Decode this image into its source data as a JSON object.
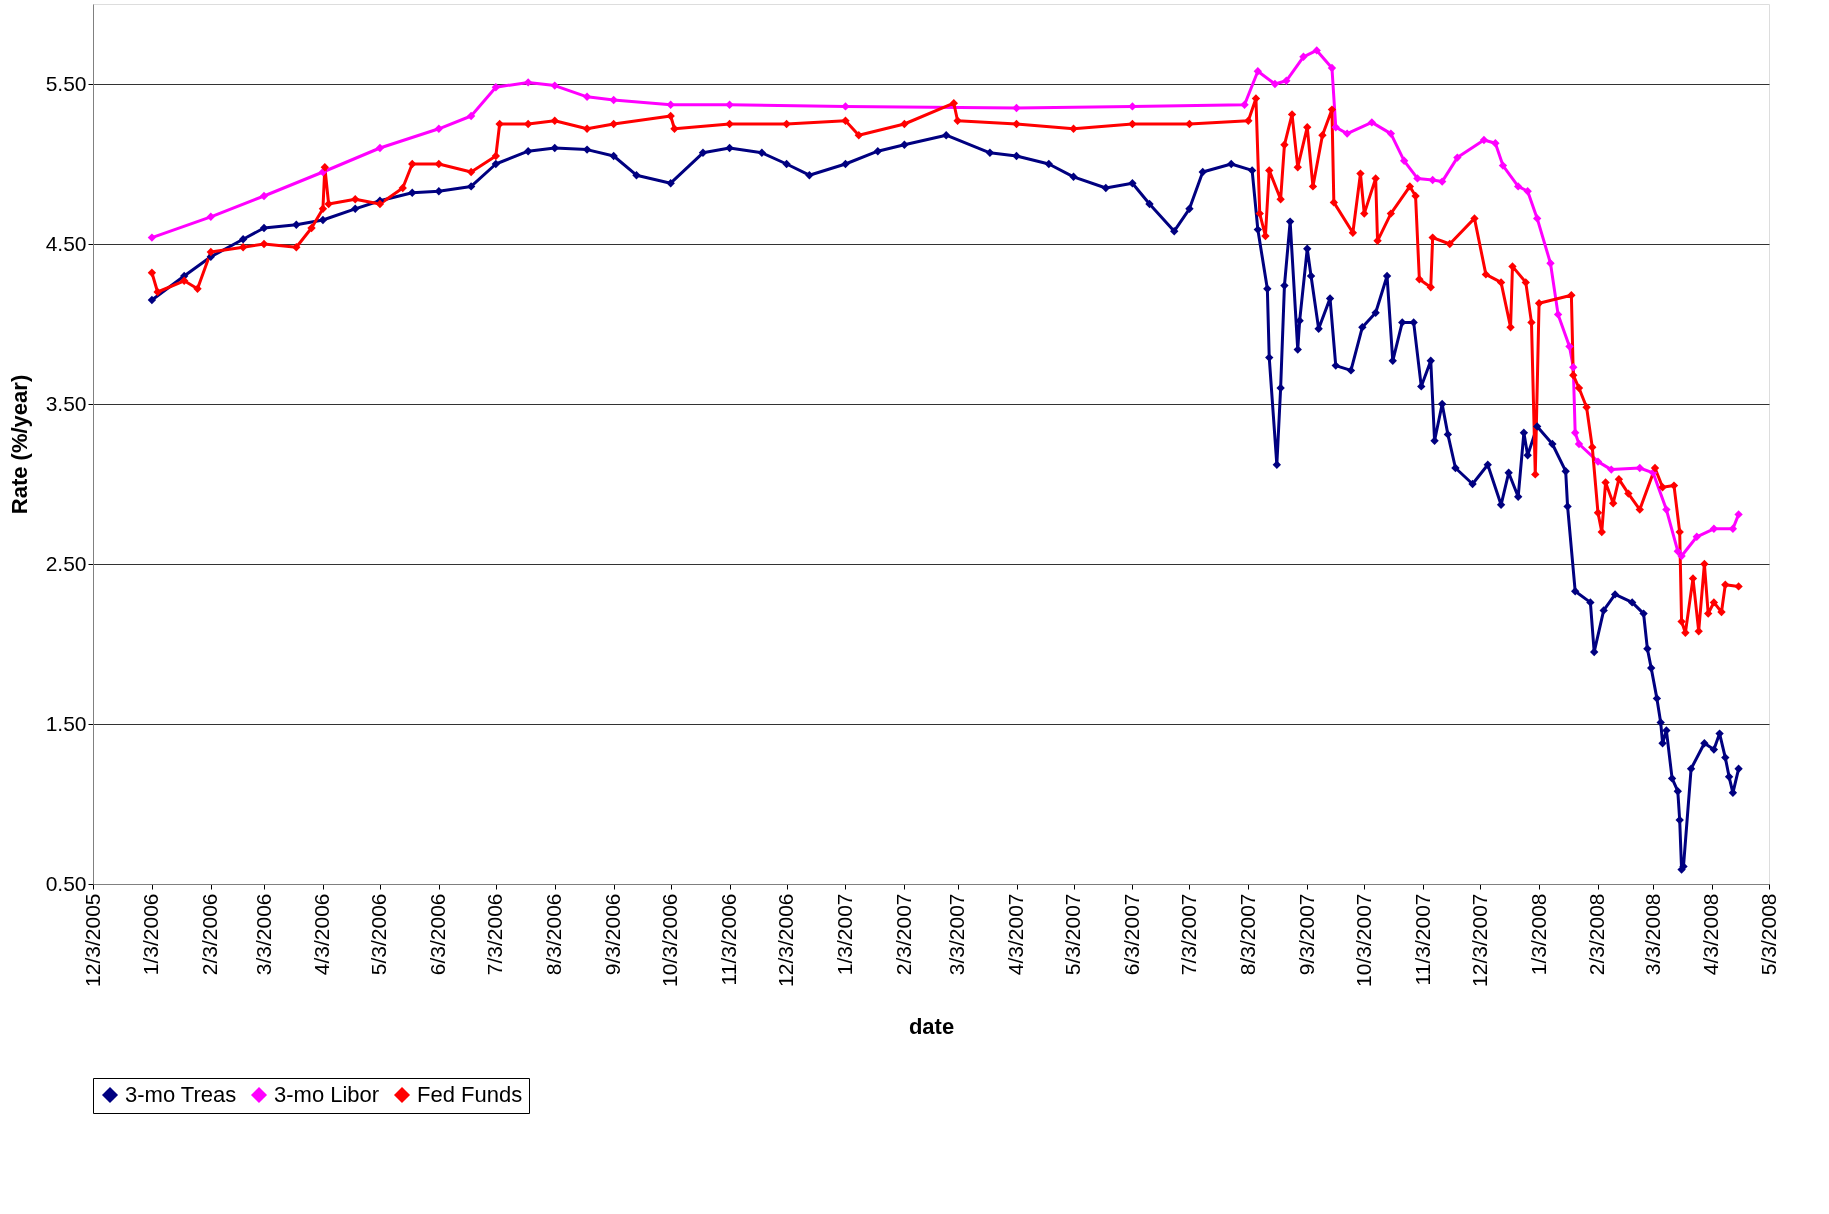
{
  "chart_data": {
    "type": "line",
    "xlabel": "date",
    "ylabel": "Rate (%/year)",
    "xlim": [
      "2005-12-03",
      "2008-05-03"
    ],
    "ylim": [
      0.5,
      6.0
    ],
    "xticks": [
      {
        "value": "2005-12-03",
        "label": "12/3/2005"
      },
      {
        "value": "2006-01-03",
        "label": "1/3/2006"
      },
      {
        "value": "2006-02-03",
        "label": "2/3/2006"
      },
      {
        "value": "2006-03-03",
        "label": "3/3/2006"
      },
      {
        "value": "2006-04-03",
        "label": "4/3/2006"
      },
      {
        "value": "2006-05-03",
        "label": "5/3/2006"
      },
      {
        "value": "2006-06-03",
        "label": "6/3/2006"
      },
      {
        "value": "2006-07-03",
        "label": "7/3/2006"
      },
      {
        "value": "2006-08-03",
        "label": "8/3/2006"
      },
      {
        "value": "2006-09-03",
        "label": "9/3/2006"
      },
      {
        "value": "2006-10-03",
        "label": "10/3/2006"
      },
      {
        "value": "2006-11-03",
        "label": "11/3/2006"
      },
      {
        "value": "2006-12-03",
        "label": "12/3/2006"
      },
      {
        "value": "2007-01-03",
        "label": "1/3/2007"
      },
      {
        "value": "2007-02-03",
        "label": "2/3/2007"
      },
      {
        "value": "2007-03-03",
        "label": "3/3/2007"
      },
      {
        "value": "2007-04-03",
        "label": "4/3/2007"
      },
      {
        "value": "2007-05-03",
        "label": "5/3/2007"
      },
      {
        "value": "2007-06-03",
        "label": "6/3/2007"
      },
      {
        "value": "2007-07-03",
        "label": "7/3/2007"
      },
      {
        "value": "2007-08-03",
        "label": "8/3/2007"
      },
      {
        "value": "2007-09-03",
        "label": "9/3/2007"
      },
      {
        "value": "2007-10-03",
        "label": "10/3/2007"
      },
      {
        "value": "2007-11-03",
        "label": "11/3/2007"
      },
      {
        "value": "2007-12-03",
        "label": "12/3/2007"
      },
      {
        "value": "2008-01-03",
        "label": "1/3/2008"
      },
      {
        "value": "2008-02-03",
        "label": "2/3/2008"
      },
      {
        "value": "2008-03-03",
        "label": "3/3/2008"
      },
      {
        "value": "2008-04-03",
        "label": "4/3/2008"
      },
      {
        "value": "2008-05-03",
        "label": "5/3/2008"
      }
    ],
    "yticks": [
      {
        "value": 0.5,
        "label": "0.50"
      },
      {
        "value": 1.5,
        "label": "1.50"
      },
      {
        "value": 2.5,
        "label": "2.50"
      },
      {
        "value": 3.5,
        "label": "3.50"
      },
      {
        "value": 4.5,
        "label": "4.50"
      },
      {
        "value": 5.5,
        "label": "5.50"
      }
    ],
    "grid": "y",
    "legend": "bottom",
    "marker": "diamond",
    "line_style": "solid",
    "series": [
      {
        "name": "3-mo Treas",
        "color": "#000080",
        "x": [
          "2006-01-03",
          "2006-01-20",
          "2006-02-03",
          "2006-02-20",
          "2006-03-03",
          "2006-03-20",
          "2006-04-03",
          "2006-04-20",
          "2006-05-03",
          "2006-05-20",
          "2006-06-03",
          "2006-06-20",
          "2006-07-03",
          "2006-07-20",
          "2006-08-03",
          "2006-08-20",
          "2006-09-03",
          "2006-09-15",
          "2006-10-03",
          "2006-10-20",
          "2006-11-03",
          "2006-11-20",
          "2006-12-03",
          "2006-12-15",
          "2007-01-03",
          "2007-01-20",
          "2007-02-03",
          "2007-02-25",
          "2007-03-20",
          "2007-04-03",
          "2007-04-20",
          "2007-05-03",
          "2007-05-20",
          "2007-06-03",
          "2007-06-12",
          "2007-06-25",
          "2007-07-03",
          "2007-07-10",
          "2007-07-25",
          "2007-08-05",
          "2007-08-08",
          "2007-08-13",
          "2007-08-14",
          "2007-08-18",
          "2007-08-20",
          "2007-08-22",
          "2007-08-25",
          "2007-08-29",
          "2007-08-30",
          "2007-09-03",
          "2007-09-05",
          "2007-09-09",
          "2007-09-15",
          "2007-09-18",
          "2007-09-26",
          "2007-10-02",
          "2007-10-09",
          "2007-10-15",
          "2007-10-18",
          "2007-10-23",
          "2007-10-29",
          "2007-11-02",
          "2007-11-07",
          "2007-11-09",
          "2007-11-13",
          "2007-11-16",
          "2007-11-20",
          "2007-11-29",
          "2007-12-07",
          "2007-12-14",
          "2007-12-18",
          "2007-12-23",
          "2007-12-26",
          "2007-12-28",
          "2008-01-02",
          "2008-01-10",
          "2008-01-17",
          "2008-01-18",
          "2008-01-22",
          "2008-01-30",
          "2008-02-01",
          "2008-02-06",
          "2008-02-12",
          "2008-02-21",
          "2008-02-27",
          "2008-02-29",
          "2008-03-02",
          "2008-03-05",
          "2008-03-07",
          "2008-03-08",
          "2008-03-10",
          "2008-03-13",
          "2008-03-16",
          "2008-03-17",
          "2008-03-18",
          "2008-03-19",
          "2008-03-23",
          "2008-03-30",
          "2008-04-04",
          "2008-04-07",
          "2008-04-10",
          "2008-04-12",
          "2008-04-14",
          "2008-04-17"
        ],
        "values": [
          4.15,
          4.3,
          4.42,
          4.53,
          4.6,
          4.62,
          4.65,
          4.72,
          4.77,
          4.82,
          4.83,
          4.86,
          5.0,
          5.08,
          5.1,
          5.09,
          5.05,
          4.93,
          4.88,
          5.07,
          5.1,
          5.07,
          5.0,
          4.93,
          5.0,
          5.08,
          5.12,
          5.18,
          5.07,
          5.05,
          5.0,
          4.92,
          4.85,
          4.88,
          4.75,
          4.58,
          4.72,
          4.95,
          5.0,
          4.96,
          4.59,
          4.22,
          3.79,
          3.12,
          3.6,
          4.24,
          4.64,
          3.84,
          4.02,
          4.47,
          4.3,
          3.97,
          4.16,
          3.74,
          3.71,
          3.98,
          4.07,
          4.3,
          3.77,
          4.01,
          4.01,
          3.61,
          3.77,
          3.27,
          3.5,
          3.31,
          3.1,
          3.0,
          3.12,
          2.87,
          3.07,
          2.92,
          3.32,
          3.18,
          3.36,
          3.25,
          3.08,
          2.86,
          2.33,
          2.26,
          1.95,
          2.21,
          2.31,
          2.26,
          2.19,
          1.97,
          1.85,
          1.66,
          1.51,
          1.38,
          1.46,
          1.16,
          1.08,
          0.9,
          0.59,
          0.61,
          1.22,
          1.38,
          1.34,
          1.44,
          1.29,
          1.17,
          1.07,
          1.22
        ]
      },
      {
        "name": "3-mo Libor",
        "color": "#ff00ff",
        "x": [
          "2006-01-03",
          "2006-02-03",
          "2006-03-03",
          "2006-04-03",
          "2006-05-03",
          "2006-06-03",
          "2006-06-20",
          "2006-07-03",
          "2006-07-20",
          "2006-08-03",
          "2006-08-20",
          "2006-09-03",
          "2006-10-03",
          "2006-11-03",
          "2007-01-03",
          "2007-04-03",
          "2007-06-03",
          "2007-08-01",
          "2007-08-08",
          "2007-08-17",
          "2007-08-23",
          "2007-09-01",
          "2007-09-08",
          "2007-09-16",
          "2007-09-18",
          "2007-09-24",
          "2007-10-07",
          "2007-10-17",
          "2007-10-24",
          "2007-10-31",
          "2007-11-08",
          "2007-11-13",
          "2007-11-21",
          "2007-12-05",
          "2007-12-11",
          "2007-12-15",
          "2007-12-23",
          "2007-12-28",
          "2008-01-02",
          "2008-01-09",
          "2008-01-13",
          "2008-01-19",
          "2008-01-21",
          "2008-01-22",
          "2008-01-24",
          "2008-02-03",
          "2008-02-10",
          "2008-02-25",
          "2008-03-03",
          "2008-03-10",
          "2008-03-16",
          "2008-03-18",
          "2008-03-26",
          "2008-04-04",
          "2008-04-14",
          "2008-04-17"
        ],
        "values": [
          4.54,
          4.67,
          4.8,
          4.95,
          5.1,
          5.22,
          5.3,
          5.48,
          5.51,
          5.49,
          5.42,
          5.4,
          5.37,
          5.37,
          5.36,
          5.35,
          5.36,
          5.37,
          5.58,
          5.5,
          5.52,
          5.67,
          5.71,
          5.6,
          5.23,
          5.19,
          5.26,
          5.19,
          5.02,
          4.91,
          4.9,
          4.89,
          5.04,
          5.15,
          5.13,
          4.99,
          4.86,
          4.83,
          4.66,
          4.38,
          4.06,
          3.86,
          3.73,
          3.32,
          3.25,
          3.14,
          3.09,
          3.1,
          3.07,
          2.84,
          2.58,
          2.55,
          2.67,
          2.72,
          2.72,
          2.81
        ]
      },
      {
        "name": "Fed Funds",
        "color": "#ff0000",
        "x": [
          "2006-01-03",
          "2006-01-06",
          "2006-01-20",
          "2006-01-27",
          "2006-02-03",
          "2006-02-20",
          "2006-03-03",
          "2006-03-20",
          "2006-03-28",
          "2006-04-03",
          "2006-04-04",
          "2006-04-06",
          "2006-04-20",
          "2006-05-03",
          "2006-05-15",
          "2006-05-20",
          "2006-06-03",
          "2006-06-20",
          "2006-07-03",
          "2006-07-05",
          "2006-07-20",
          "2006-08-03",
          "2006-08-20",
          "2006-09-03",
          "2006-10-03",
          "2006-10-05",
          "2006-11-03",
          "2006-12-03",
          "2007-01-03",
          "2007-01-10",
          "2007-02-03",
          "2007-03-01",
          "2007-03-03",
          "2007-04-03",
          "2007-05-03",
          "2007-06-03",
          "2007-07-03",
          "2007-08-03",
          "2007-08-07",
          "2007-08-09",
          "2007-08-12",
          "2007-08-14",
          "2007-08-20",
          "2007-08-22",
          "2007-08-26",
          "2007-08-29",
          "2007-09-03",
          "2007-09-06",
          "2007-09-11",
          "2007-09-16",
          "2007-09-17",
          "2007-09-27",
          "2007-10-01",
          "2007-10-03",
          "2007-10-09",
          "2007-10-10",
          "2007-10-17",
          "2007-10-27",
          "2007-10-30",
          "2007-11-01",
          "2007-11-07",
          "2007-11-08",
          "2007-11-17",
          "2007-11-30",
          "2007-12-06",
          "2007-12-14",
          "2007-12-19",
          "2007-12-20",
          "2007-12-27",
          "2007-12-30",
          "2008-01-01",
          "2008-01-03",
          "2008-01-20",
          "2008-01-21",
          "2008-01-24",
          "2008-01-28",
          "2008-01-31",
          "2008-02-03",
          "2008-02-05",
          "2008-02-07",
          "2008-02-11",
          "2008-02-14",
          "2008-02-19",
          "2008-02-25",
          "2008-03-04",
          "2008-03-08",
          "2008-03-14",
          "2008-03-17",
          "2008-03-18",
          "2008-03-20",
          "2008-03-24",
          "2008-03-27",
          "2008-03-30",
          "2008-04-01",
          "2008-04-04",
          "2008-04-08",
          "2008-04-10",
          "2008-04-17"
        ],
        "values": [
          4.32,
          4.2,
          4.27,
          4.22,
          4.45,
          4.48,
          4.5,
          4.48,
          4.6,
          4.72,
          4.98,
          4.75,
          4.78,
          4.75,
          4.85,
          5.0,
          5.0,
          4.95,
          5.05,
          5.25,
          5.25,
          5.27,
          5.22,
          5.25,
          5.3,
          5.22,
          5.25,
          5.25,
          5.27,
          5.18,
          5.25,
          5.38,
          5.27,
          5.25,
          5.22,
          5.25,
          5.25,
          5.27,
          5.41,
          4.69,
          4.55,
          4.96,
          4.78,
          5.12,
          5.31,
          4.98,
          5.23,
          4.86,
          5.18,
          5.34,
          4.76,
          4.57,
          4.94,
          4.69,
          4.91,
          4.52,
          4.69,
          4.86,
          4.8,
          4.28,
          4.23,
          4.54,
          4.5,
          4.66,
          4.31,
          4.26,
          3.98,
          4.36,
          4.26,
          4.01,
          3.06,
          4.13,
          4.18,
          3.68,
          3.6,
          3.48,
          3.23,
          2.82,
          2.7,
          3.01,
          2.88,
          3.03,
          2.94,
          2.84,
          3.1,
          2.98,
          2.99,
          2.7,
          2.14,
          2.07,
          2.41,
          2.08,
          2.5,
          2.19,
          2.26,
          2.2,
          2.37,
          2.36
        ]
      }
    ]
  }
}
